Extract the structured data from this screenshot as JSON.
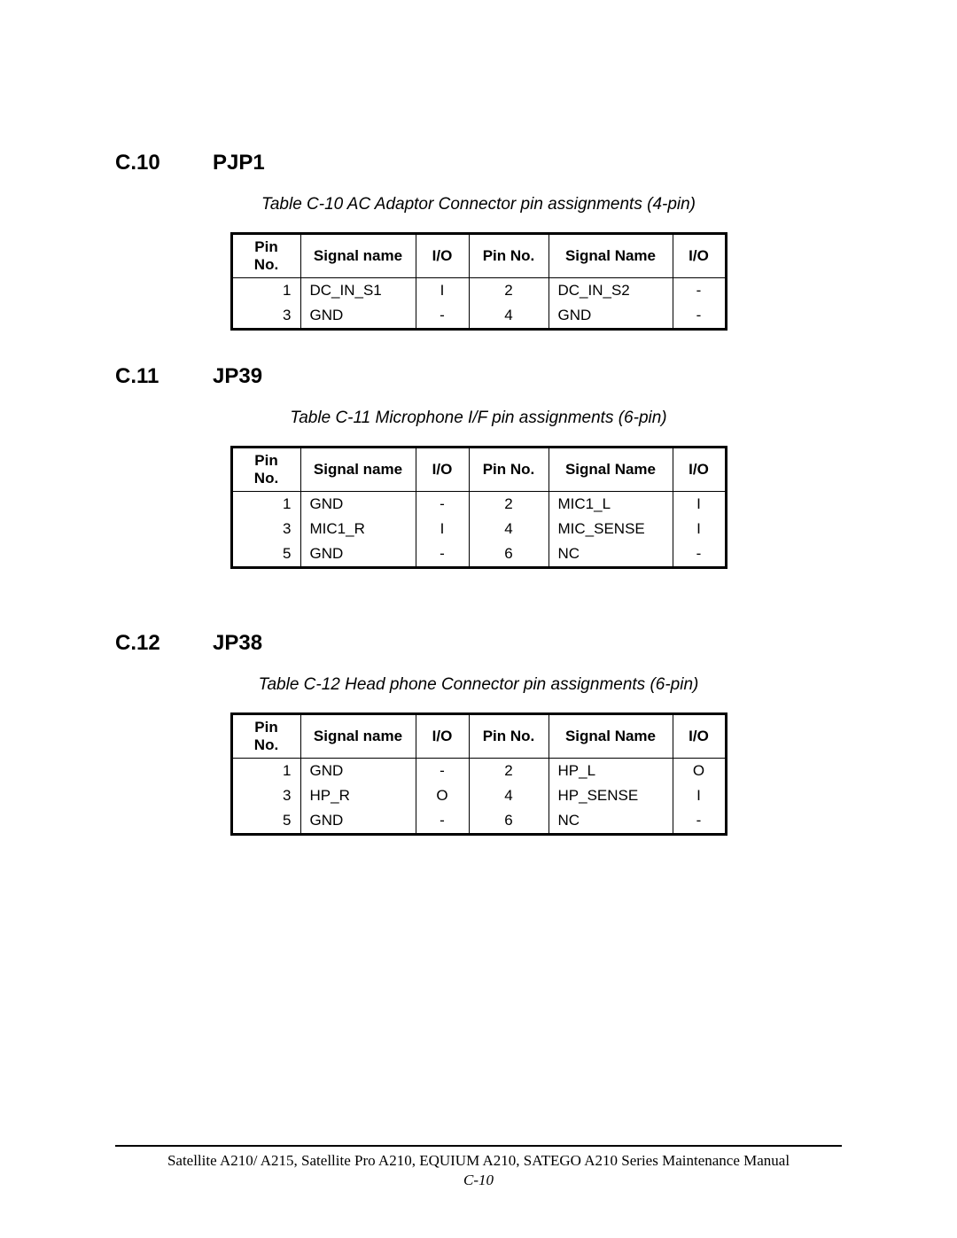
{
  "sections": [
    {
      "number": "C.10",
      "title": "PJP1",
      "caption": "Table C-10 AC Adaptor Connector pin assignments (4-pin)",
      "headers": [
        "Pin No.",
        "Signal name",
        "I/O",
        "Pin No.",
        "Signal Name",
        "I/O"
      ],
      "rows": [
        [
          "1",
          "DC_IN_S1",
          "I",
          "2",
          "DC_IN_S2",
          "-"
        ],
        [
          "3",
          "GND",
          "-",
          "4",
          "GND",
          "-"
        ]
      ],
      "gap_class": ""
    },
    {
      "number": "C.11",
      "title": "JP39",
      "caption": "Table C-11 Microphone I/F pin assignments (6-pin)",
      "headers": [
        "Pin No.",
        "Signal name",
        "I/O",
        "Pin No.",
        "Signal Name",
        "I/O"
      ],
      "rows": [
        [
          "1",
          "GND",
          "-",
          "2",
          "MIC1_L",
          "I"
        ],
        [
          "3",
          "MIC1_R",
          "I",
          "4",
          "MIC_SENSE",
          "I"
        ],
        [
          "5",
          "GND",
          "-",
          "6",
          "NC",
          "-"
        ]
      ],
      "gap_class": ""
    },
    {
      "number": "C.12",
      "title": "JP38",
      "caption": "Table C-12 Head phone Connector pin assignments (6-pin)",
      "headers": [
        "Pin No.",
        "Signal name",
        "I/O",
        "Pin No.",
        "Signal Name",
        "I/O"
      ],
      "rows": [
        [
          "1",
          "GND",
          "-",
          "2",
          "HP_L",
          "O"
        ],
        [
          "3",
          "HP_R",
          "O",
          "4",
          "HP_SENSE",
          "I"
        ],
        [
          "5",
          "GND",
          "-",
          "6",
          "NC",
          "-"
        ]
      ],
      "gap_class": "section-gap-large"
    }
  ],
  "footer": {
    "text": "Satellite A210/ A215, Satellite Pro A210, EQUIUM A210, SATEGO A210 Series Maintenance Manual",
    "page": "C-10"
  },
  "col_classes": [
    "col-pin",
    "col-sig",
    "col-io",
    "col-pin2",
    "col-sig2",
    "col-io2"
  ]
}
